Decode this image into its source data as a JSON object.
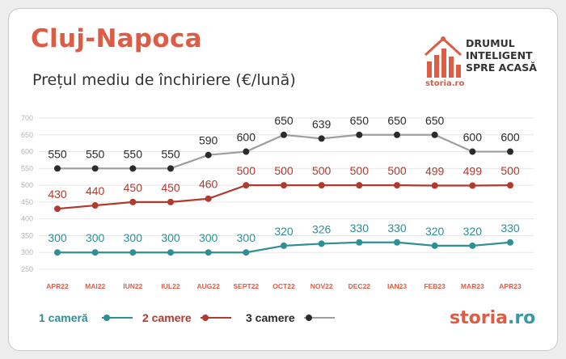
{
  "header": {
    "title": "Cluj-Napoca",
    "subtitle": "Prețul mediu de închiriere (€/lună)"
  },
  "brand": {
    "tagline_lines": [
      "DRUMUL",
      "INTELIGENT",
      "SPRE ACASĂ"
    ],
    "small_logo": "storia.ro",
    "footer_logo_a": "storia",
    "footer_logo_b": ".ro"
  },
  "colors": {
    "accent": "#dd5c45",
    "series_1": "#2e8f95",
    "series_2": "#b03a2e",
    "series_3": "#9e9e9e",
    "marker_3": "#2b2b2b"
  },
  "chart_data": {
    "type": "line",
    "categories": [
      "APR22",
      "MAI22",
      "IUN22",
      "IUL22",
      "AUG22",
      "SEPT22",
      "OCT22",
      "NOV22",
      "DEC22",
      "IAN23",
      "FEB23",
      "MAR23",
      "APR23"
    ],
    "yticks": [
      250,
      300,
      350,
      400,
      450,
      500,
      550,
      600,
      650,
      700
    ],
    "ylim": [
      250,
      700
    ],
    "grid": true,
    "legend_position": "bottom-left",
    "series": [
      {
        "name": "1 cameră",
        "values": [
          300,
          300,
          300,
          300,
          300,
          300,
          320,
          326,
          330,
          330,
          320,
          320,
          330
        ]
      },
      {
        "name": "2 camere",
        "values": [
          430,
          440,
          450,
          450,
          460,
          500,
          500,
          500,
          500,
          500,
          499,
          499,
          500
        ]
      },
      {
        "name": "3 camere",
        "values": [
          550,
          550,
          550,
          550,
          590,
          600,
          650,
          639,
          650,
          650,
          650,
          600,
          600
        ]
      }
    ]
  }
}
